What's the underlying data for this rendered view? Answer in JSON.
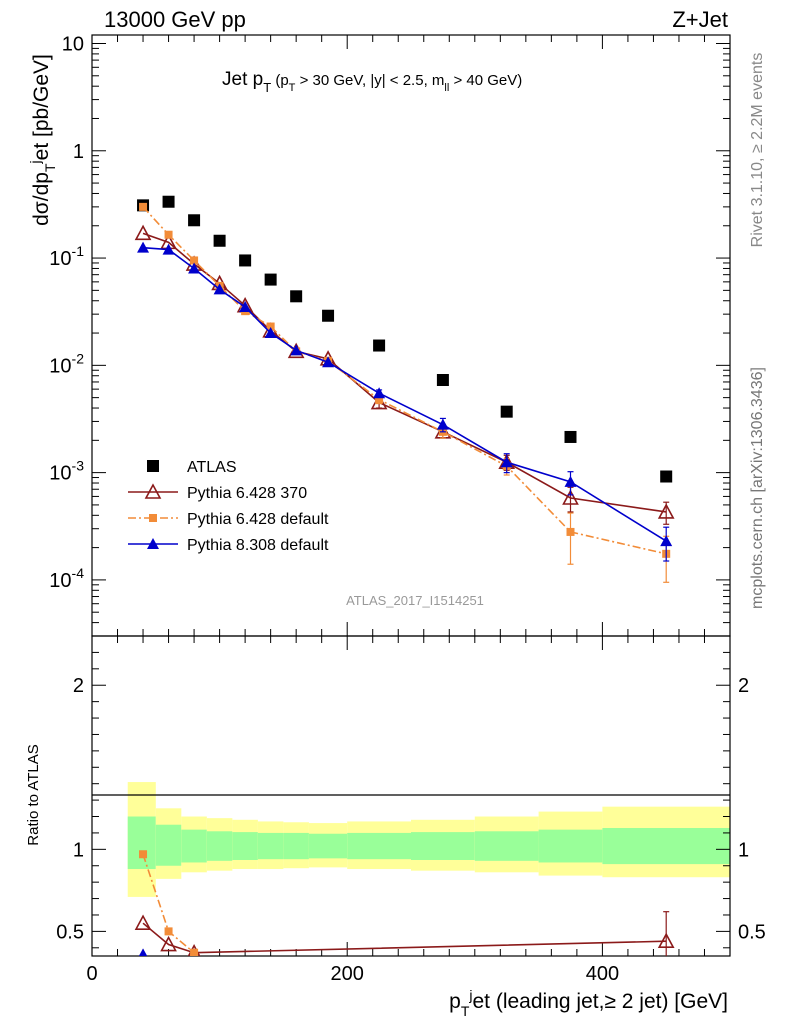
{
  "header": {
    "left_label": "13000 GeV pp",
    "right_label": "Z+Jet"
  },
  "side_labels": {
    "rivet": "Rivet 3.1.10, ≥ 2.2M events",
    "mcplots": "mcplots.cern.ch [arXiv:1306.3436]"
  },
  "chart_data": [
    {
      "type": "scatter",
      "title": "Jet pT (pT > 30 GeV, |y| < 2.5, mll > 40 GeV)",
      "ylabel": "dσ/dpTjet [pb/GeV]",
      "yscale": "log",
      "ylim": [
        3e-05,
        12
      ],
      "xlim": [
        0,
        500
      ],
      "y_tick_labels": [
        "10",
        "1",
        "10^-1",
        "10^-2",
        "10^-3",
        "10^-4"
      ],
      "watermark": "ATLAS_2017_I1514251",
      "legend_position": "bottom-left",
      "x": [
        40,
        60,
        80,
        100,
        120,
        140,
        160,
        185,
        225,
        275,
        325,
        375,
        450
      ],
      "series": [
        {
          "name": "ATLAS",
          "color": "#000000",
          "marker": "square",
          "line": "none",
          "values": [
            0.31,
            0.335,
            0.225,
            0.145,
            0.095,
            0.063,
            0.044,
            0.029,
            0.0153,
            0.0073,
            0.0037,
            0.00215,
            0.00092
          ]
        },
        {
          "name": "Pythia 6.428 370",
          "color": "#8b1a1a",
          "marker": "open-triangle",
          "line": "solid",
          "values": [
            0.17,
            0.14,
            0.088,
            0.058,
            0.036,
            0.021,
            0.0135,
            0.0115,
            0.0045,
            0.0024,
            0.00125,
            0.00058,
            0.00043
          ],
          "errors": [
            0,
            0,
            0,
            0,
            0,
            0,
            0,
            0,
            0.0005,
            0.0003,
            0.0002,
            0.00015,
            0.0001
          ]
        },
        {
          "name": "Pythia 6.428 default",
          "color": "#f28c38",
          "marker": "filled-square",
          "line": "dashdot",
          "values": [
            0.3,
            0.165,
            0.095,
            0.055,
            0.032,
            0.023,
            0.0135,
            0.011,
            0.0048,
            0.0024,
            0.00115,
            0.00028,
            0.000175
          ],
          "errors": [
            0,
            0,
            0,
            0,
            0,
            0,
            0,
            0,
            0.0004,
            0.0003,
            0.0002,
            0.00014,
            8e-05
          ]
        },
        {
          "name": "Pythia 8.308 default",
          "color": "#0000cc",
          "marker": "filled-triangle",
          "line": "solid",
          "values": [
            0.125,
            0.12,
            0.08,
            0.051,
            0.035,
            0.02,
            0.0138,
            0.0107,
            0.0055,
            0.0028,
            0.00125,
            0.00082,
            0.00023
          ],
          "errors": [
            0,
            0,
            0,
            0,
            0,
            0,
            0,
            0,
            0.0004,
            0.0004,
            0.00025,
            0.0002,
            8e-05
          ]
        }
      ]
    },
    {
      "type": "scatter",
      "ylabel": "Ratio to ATLAS",
      "xlabel": "pTjet (leading jet,≥ 2 jet) [GeV]",
      "xlim": [
        0,
        500
      ],
      "ylim": [
        0.35,
        2.3
      ],
      "x_ticks": [
        0,
        200,
        400
      ],
      "y_ticks": [
        0.5,
        1,
        2
      ],
      "bands": {
        "edges": [
          28,
          50,
          70,
          90,
          110,
          130,
          150,
          170,
          200,
          250,
          300,
          350,
          400,
          500
        ],
        "green": [
          [
            0.88,
            1.2
          ],
          [
            0.9,
            1.15
          ],
          [
            0.92,
            1.12
          ],
          [
            0.93,
            1.11
          ],
          [
            0.935,
            1.105
          ],
          [
            0.94,
            1.1
          ],
          [
            0.94,
            1.1
          ],
          [
            0.945,
            1.095
          ],
          [
            0.94,
            1.1
          ],
          [
            0.935,
            1.105
          ],
          [
            0.93,
            1.11
          ],
          [
            0.92,
            1.12
          ],
          [
            0.91,
            1.13
          ]
        ],
        "yellow": [
          [
            0.71,
            1.41
          ],
          [
            0.82,
            1.25
          ],
          [
            0.86,
            1.2
          ],
          [
            0.87,
            1.19
          ],
          [
            0.88,
            1.18
          ],
          [
            0.88,
            1.17
          ],
          [
            0.885,
            1.165
          ],
          [
            0.89,
            1.16
          ],
          [
            0.88,
            1.17
          ],
          [
            0.87,
            1.18
          ],
          [
            0.86,
            1.2
          ],
          [
            0.84,
            1.23
          ],
          [
            0.83,
            1.26
          ]
        ]
      },
      "series": [
        {
          "name": "Pythia 6.428 370",
          "x": [
            40,
            60,
            80,
            450
          ],
          "values": [
            0.55,
            0.42,
            0.37,
            0.44
          ],
          "errors": [
            0,
            0,
            0,
            0.18
          ]
        },
        {
          "name": "Pythia 6.428 default",
          "x": [
            40,
            60,
            80
          ],
          "values": [
            0.97,
            0.5,
            0.37
          ],
          "errors": [
            0,
            0,
            0
          ]
        },
        {
          "name": "Pythia 8.308 default",
          "x": [
            40
          ],
          "values": [
            0.36
          ],
          "errors": [
            0
          ]
        }
      ]
    }
  ]
}
